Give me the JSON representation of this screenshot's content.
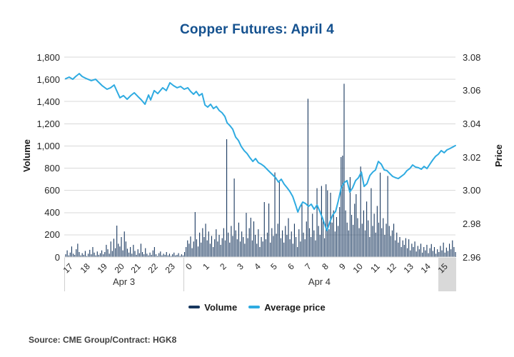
{
  "figure": {
    "title": "Copper Futures: April 4",
    "source": "Source: CME Group/Contract: HGK8",
    "legend": [
      {
        "label": "Volume",
        "color": "#17375e"
      },
      {
        "label": "Average price",
        "color": "#2fabe1"
      }
    ]
  },
  "colors": {
    "title": "#14518f",
    "volume_bar": "#17375e",
    "price_line": "#2fabe1",
    "gridline": "#d9d9d9",
    "highlight": "#d9d9d9",
    "tick_text": "#262626"
  },
  "chart_data": {
    "type": "bar+line combo",
    "title": "Copper Futures: April 4",
    "x_axis": {
      "hour_labels": [
        "17",
        "18",
        "19",
        "20",
        "21",
        "22",
        "23",
        "0",
        "1",
        "2",
        "3",
        "4",
        "5",
        "6",
        "7",
        "8",
        "9",
        "10",
        "11",
        "12",
        "13",
        "14",
        "15"
      ],
      "day_sections": [
        {
          "label": "Apr 3",
          "start_hour_index": 0,
          "end_hour_index": 7
        },
        {
          "label": "Apr 4",
          "start_hour_index": 7,
          "end_hour_index": 22.96
        }
      ],
      "highlighted_period": "15"
    },
    "y_axis_left": {
      "label": "Volume",
      "min": 0,
      "max": 1800,
      "ticks": [
        "1,800",
        "1,600",
        "1,400",
        "1,200",
        "1,000",
        "800",
        "600",
        "400",
        "200",
        "0"
      ]
    },
    "y_axis_right": {
      "label": "Price",
      "min": 2.96,
      "max": 3.08,
      "ticks": [
        "3.08",
        "3.06",
        "3.04",
        "3.02",
        "3.00",
        "2.98",
        "2.96"
      ]
    },
    "series": [
      {
        "name": "Volume",
        "type": "bar",
        "color": "#17375e",
        "values": [
          25,
          60,
          15,
          40,
          95,
          30,
          20,
          70,
          120,
          45,
          15,
          35,
          20,
          55,
          10,
          30,
          65,
          25,
          90,
          40,
          15,
          50,
          20,
          35,
          60,
          25,
          45,
          110,
          70,
          30,
          140,
          55,
          165,
          80,
          283,
          120,
          95,
          180,
          60,
          230,
          140,
          75,
          40,
          90,
          30,
          110,
          55,
          20,
          70,
          35,
          120,
          45,
          25,
          80,
          30,
          15,
          40,
          20,
          60,
          90,
          25,
          10,
          35,
          50,
          15,
          30,
          20,
          45,
          15,
          30,
          10,
          25,
          40,
          15,
          20,
          35,
          10,
          25,
          15,
          45,
          90,
          150,
          120,
          185,
          80,
          140,
          405,
          160,
          95,
          220,
          130,
          260,
          180,
          300,
          150,
          230,
          120,
          190,
          90,
          160,
          250,
          140,
          200,
          110,
          170,
          260,
          150,
          1061,
          220,
          130,
          280,
          190,
          707,
          240,
          160,
          310,
          140,
          230,
          180,
          120,
          398,
          170,
          260,
          354,
          150,
          321,
          200,
          120,
          250,
          90,
          180,
          140,
          495,
          160,
          220,
          482,
          130,
          260,
          190,
          762,
          210,
          300,
          675,
          170,
          240,
          130,
          280,
          200,
          350,
          160,
          230,
          120,
          300,
          180,
          90,
          250,
          140,
          480,
          220,
          160,
          320,
          1425,
          260,
          180,
          390,
          240,
          150,
          620,
          280,
          200,
          640,
          330,
          170,
          655,
          600,
          250,
          579,
          310,
          420,
          230,
          360,
          280,
          450,
          900,
          913,
          1560,
          420,
          310,
          240,
          720,
          380,
          290,
          480,
          566,
          350,
          260,
          815,
          300,
          420,
          240,
          500,
          330,
          180,
          620,
          280,
          390,
          220,
          460,
          310,
          760,
          260,
          350,
          200,
          300,
          730,
          280,
          190,
          240,
          300,
          150,
          220,
          130,
          180,
          90,
          150,
          110,
          170,
          80,
          160,
          60,
          120,
          90,
          140,
          50,
          100,
          70,
          120,
          40,
          90,
          60,
          110,
          35,
          80,
          117,
          55,
          90,
          30,
          70,
          45,
          100,
          60,
          130,
          40,
          85,
          55,
          120,
          70,
          150,
          90,
          45
        ]
      },
      {
        "name": "Average price",
        "type": "line",
        "color": "#2fabe1",
        "points": [
          [
            0.08,
            3.067
          ],
          [
            0.29,
            3.068
          ],
          [
            0.5,
            3.0667
          ],
          [
            0.67,
            3.0684
          ],
          [
            0.88,
            3.0701
          ],
          [
            1.05,
            3.0684
          ],
          [
            1.3,
            3.0671
          ],
          [
            1.59,
            3.0659
          ],
          [
            1.84,
            3.0667
          ],
          [
            2.01,
            3.065
          ],
          [
            2.22,
            3.0629
          ],
          [
            2.51,
            3.0607
          ],
          [
            2.72,
            3.0616
          ],
          [
            2.93,
            3.0633
          ],
          [
            3.06,
            3.0603
          ],
          [
            3.27,
            3.0556
          ],
          [
            3.48,
            3.0569
          ],
          [
            3.69,
            3.0547
          ],
          [
            3.9,
            3.0569
          ],
          [
            4.11,
            3.0586
          ],
          [
            4.32,
            3.0564
          ],
          [
            4.53,
            3.0543
          ],
          [
            4.74,
            3.0517
          ],
          [
            4.95,
            3.0573
          ],
          [
            5.07,
            3.0543
          ],
          [
            5.28,
            3.0599
          ],
          [
            5.49,
            3.0581
          ],
          [
            5.78,
            3.0616
          ],
          [
            5.99,
            3.0599
          ],
          [
            6.2,
            3.0646
          ],
          [
            6.41,
            3.0629
          ],
          [
            6.62,
            3.0616
          ],
          [
            6.83,
            3.0624
          ],
          [
            7.04,
            3.0607
          ],
          [
            7.25,
            3.0616
          ],
          [
            7.42,
            3.0594
          ],
          [
            7.59,
            3.0577
          ],
          [
            7.75,
            3.0594
          ],
          [
            7.92,
            3.0569
          ],
          [
            8.09,
            3.0581
          ],
          [
            8.26,
            3.0513
          ],
          [
            8.42,
            3.05
          ],
          [
            8.59,
            3.0517
          ],
          [
            8.76,
            3.0491
          ],
          [
            8.93,
            3.0504
          ],
          [
            9.1,
            3.0479
          ],
          [
            9.26,
            3.0466
          ],
          [
            9.43,
            3.0444
          ],
          [
            9.56,
            3.0406
          ],
          [
            9.72,
            3.0389
          ],
          [
            9.89,
            3.0367
          ],
          [
            10.06,
            3.032
          ],
          [
            10.23,
            3.0299
          ],
          [
            10.39,
            3.0264
          ],
          [
            10.56,
            3.0239
          ],
          [
            10.73,
            3.0221
          ],
          [
            10.9,
            3.0196
          ],
          [
            11.07,
            3.0174
          ],
          [
            11.23,
            3.0191
          ],
          [
            11.4,
            3.0166
          ],
          [
            11.57,
            3.0157
          ],
          [
            11.74,
            3.0144
          ],
          [
            11.9,
            3.0127
          ],
          [
            12.07,
            3.011
          ],
          [
            12.24,
            3.0093
          ],
          [
            12.41,
            3.0076
          ],
          [
            12.57,
            3.005
          ],
          [
            12.74,
            3.0067
          ],
          [
            12.91,
            3.0037
          ],
          [
            13.08,
            3.0016
          ],
          [
            13.24,
            2.9994
          ],
          [
            13.41,
            2.9964
          ],
          [
            13.58,
            2.9913
          ],
          [
            13.71,
            2.987
          ],
          [
            13.83,
            2.99
          ],
          [
            14,
            2.993
          ],
          [
            14.17,
            2.9921
          ],
          [
            14.33,
            2.9904
          ],
          [
            14.5,
            2.9917
          ],
          [
            14.67,
            2.9887
          ],
          [
            14.84,
            2.9913
          ],
          [
            15,
            2.9874
          ],
          [
            15.17,
            2.9831
          ],
          [
            15.34,
            2.978
          ],
          [
            15.42,
            2.9759
          ],
          [
            15.59,
            2.981
          ],
          [
            15.76,
            2.9853
          ],
          [
            15.93,
            2.9874
          ],
          [
            16.09,
            2.9939
          ],
          [
            16.26,
            3.0016
          ],
          [
            16.43,
            3.0046
          ],
          [
            16.6,
            3.0059
          ],
          [
            16.76,
            2.999
          ],
          [
            16.93,
            3.0016
          ],
          [
            17.1,
            3.0059
          ],
          [
            17.27,
            3.0076
          ],
          [
            17.44,
            3.011
          ],
          [
            17.6,
            3.0024
          ],
          [
            17.77,
            3.0041
          ],
          [
            17.94,
            3.0089
          ],
          [
            18.11,
            3.011
          ],
          [
            18.27,
            3.0123
          ],
          [
            18.44,
            3.0174
          ],
          [
            18.61,
            3.0157
          ],
          [
            18.78,
            3.0123
          ],
          [
            18.94,
            3.0119
          ],
          [
            19.11,
            3.0101
          ],
          [
            19.28,
            3.0084
          ],
          [
            19.45,
            3.0076
          ],
          [
            19.61,
            3.0071
          ],
          [
            19.78,
            3.0084
          ],
          [
            19.95,
            3.0097
          ],
          [
            20.12,
            3.0119
          ],
          [
            20.28,
            3.0131
          ],
          [
            20.45,
            3.0153
          ],
          [
            20.62,
            3.014
          ],
          [
            20.79,
            3.0136
          ],
          [
            20.96,
            3.0127
          ],
          [
            21.12,
            3.0144
          ],
          [
            21.29,
            3.0131
          ],
          [
            21.46,
            3.0157
          ],
          [
            21.63,
            3.0183
          ],
          [
            21.79,
            3.0204
          ],
          [
            21.96,
            3.0217
          ],
          [
            22.13,
            3.0239
          ],
          [
            22.3,
            3.0226
          ],
          [
            22.46,
            3.0243
          ],
          [
            22.63,
            3.0251
          ],
          [
            22.8,
            3.026
          ],
          [
            22.96,
            3.0269
          ]
        ]
      }
    ]
  }
}
